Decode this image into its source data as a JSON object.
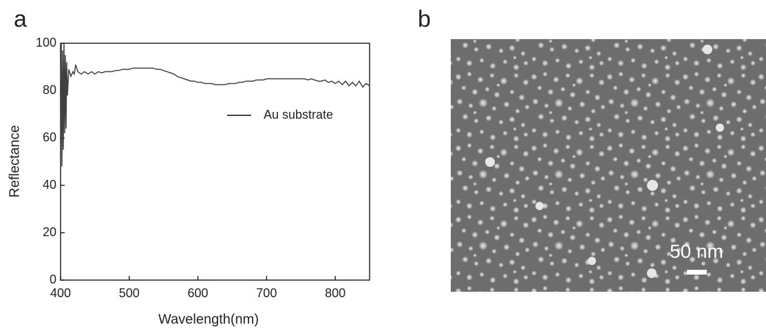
{
  "panel_labels": [
    "a",
    "b"
  ],
  "chart_data": {
    "type": "line",
    "xlabel": "Wavelength(nm)",
    "ylabel": "Reflectance",
    "x": [
      400,
      401,
      402,
      403,
      404,
      405,
      406,
      407,
      408,
      409,
      410,
      412,
      415,
      418,
      420,
      422,
      425,
      430,
      435,
      440,
      445,
      450,
      455,
      460,
      465,
      470,
      475,
      480,
      485,
      490,
      495,
      500,
      505,
      510,
      515,
      520,
      525,
      530,
      535,
      540,
      545,
      550,
      555,
      560,
      565,
      570,
      575,
      580,
      585,
      590,
      595,
      600,
      605,
      610,
      615,
      620,
      625,
      630,
      635,
      640,
      645,
      650,
      655,
      660,
      665,
      670,
      675,
      680,
      685,
      690,
      695,
      700,
      705,
      710,
      715,
      720,
      725,
      730,
      735,
      740,
      745,
      750,
      755,
      760,
      765,
      770,
      775,
      780,
      785,
      790,
      795,
      800,
      805,
      810,
      815,
      820,
      825,
      830,
      835,
      840,
      845,
      850
    ],
    "series": [
      {
        "name": "Au substrate",
        "color": "#404040",
        "values": [
          80,
          100,
          48,
          97,
          55,
          100,
          62,
          95,
          64,
          92,
          78,
          89,
          86,
          88,
          87,
          91,
          88,
          87,
          88,
          87,
          88,
          87,
          88,
          87.5,
          88,
          88,
          88,
          88.5,
          88.5,
          89,
          89,
          89,
          89.5,
          89.5,
          89.5,
          89.5,
          89.5,
          89.5,
          89.5,
          89,
          89,
          88.5,
          88,
          87.5,
          87,
          86,
          85.5,
          85,
          84.5,
          84,
          84,
          83.5,
          83.5,
          83,
          83,
          83,
          82.5,
          82.5,
          82.5,
          82.5,
          83,
          83,
          83,
          83.5,
          83.5,
          84,
          84,
          84,
          84.5,
          84.5,
          84.5,
          85,
          85,
          85,
          85,
          85,
          85,
          85,
          85,
          85,
          85,
          85,
          85,
          84.5,
          85,
          84.5,
          84,
          84,
          84.5,
          83.5,
          84,
          83,
          84,
          82.5,
          84,
          82,
          83.5,
          82,
          84,
          81.5,
          83,
          82
        ]
      }
    ],
    "xlim": [
      400,
      850
    ],
    "ylim": [
      0,
      100
    ],
    "xticks": [
      400,
      500,
      600,
      700,
      800
    ],
    "yticks": [
      0,
      20,
      40,
      60,
      80,
      100
    ],
    "legend": "upper right"
  },
  "image": {
    "scale_bar_label": "50 nm"
  }
}
